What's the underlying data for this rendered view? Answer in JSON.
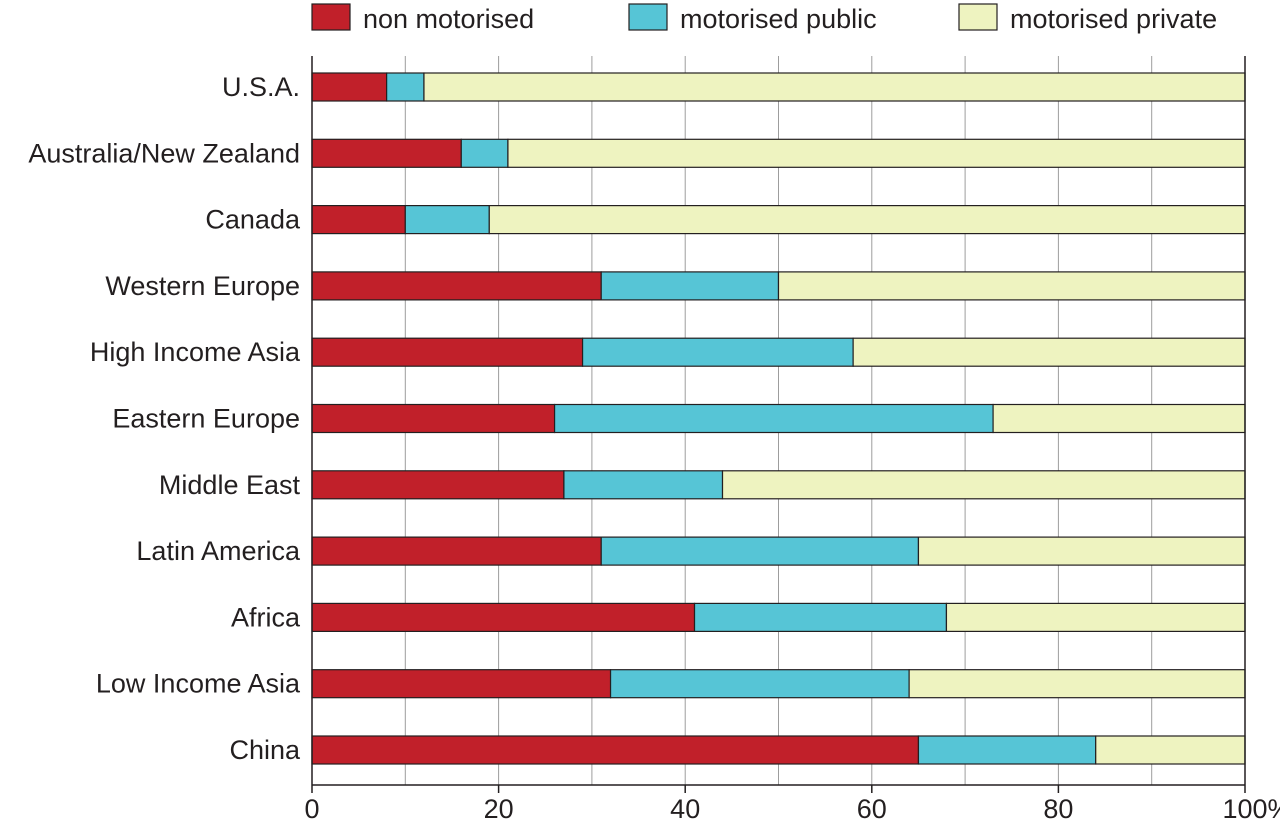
{
  "chart_data": {
    "type": "bar",
    "orientation": "horizontal",
    "stacked": true,
    "categories": [
      "U.S.A.",
      "Australia/New Zealand",
      "Canada",
      "Western Europe",
      "High Income Asia",
      "Eastern Europe",
      "Middle East",
      "Latin America",
      "Africa",
      "Low Income Asia",
      "China"
    ],
    "series": [
      {
        "name": "non motorised",
        "color": "#c1202a",
        "values": [
          8,
          16,
          10,
          31,
          29,
          26,
          27,
          31,
          41,
          32,
          65
        ]
      },
      {
        "name": "motorised public",
        "color": "#56c5d6",
        "values": [
          4,
          5,
          9,
          19,
          29,
          47,
          17,
          34,
          27,
          32,
          19
        ]
      },
      {
        "name": "motorised private",
        "color": "#eef3c0",
        "values": [
          88,
          79,
          81,
          50,
          42,
          27,
          56,
          35,
          32,
          36,
          16
        ]
      }
    ],
    "xlim": [
      0,
      100
    ],
    "xticks": [
      0,
      20,
      40,
      60,
      80,
      100
    ],
    "xtick_labels": [
      "0",
      "20",
      "40",
      "60",
      "80",
      "100%"
    ],
    "grid": true,
    "legend_position": "top"
  }
}
